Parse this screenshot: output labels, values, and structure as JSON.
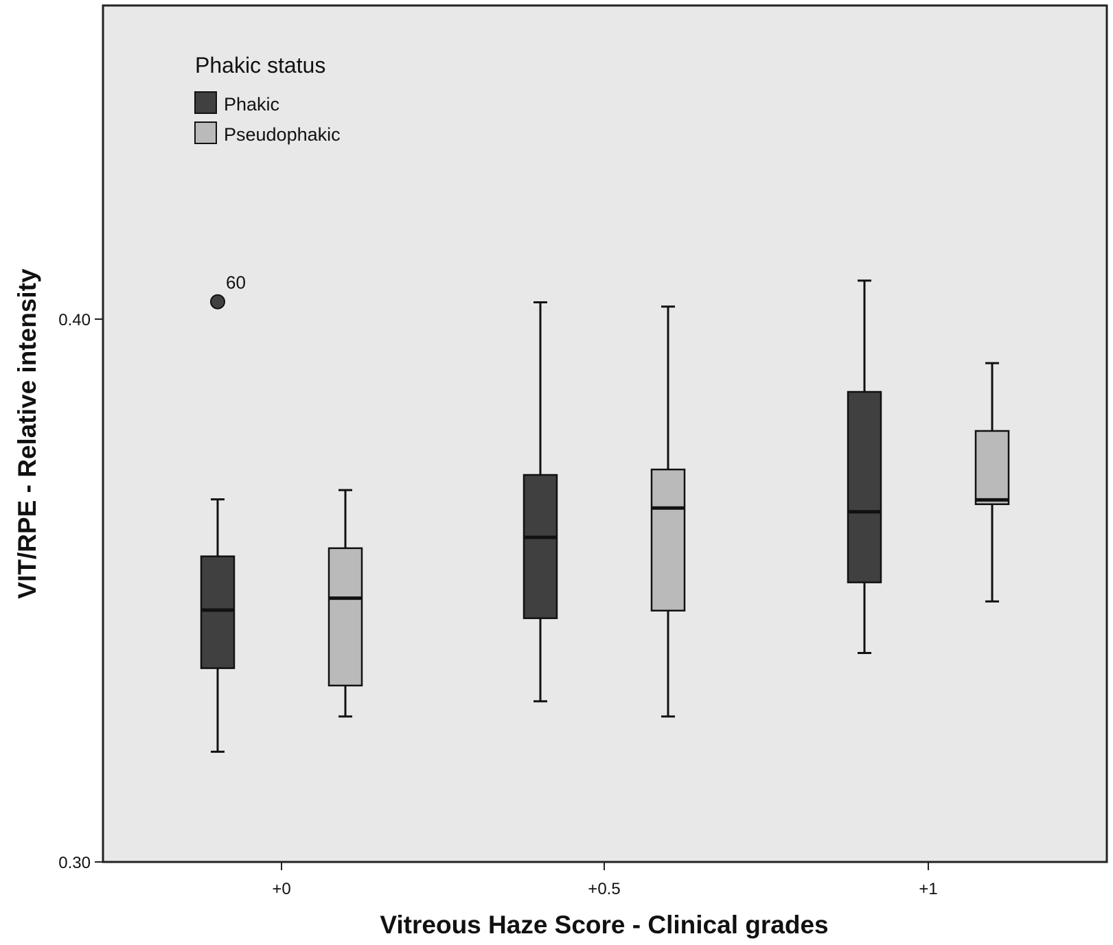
{
  "chart_data": {
    "type": "boxplot",
    "title": "",
    "xlabel": "Vitreous Haze Score - Clinical grades",
    "ylabel": "VIT/RPE - Relative intensity",
    "ylim": [
      0.3,
      0.46
    ],
    "y_ticks": [
      {
        "value": 0.3,
        "label": "0.30"
      },
      {
        "value": 0.4,
        "label": "0.40"
      }
    ],
    "categories": [
      "+0",
      "+0.5",
      "+1"
    ],
    "grid": false,
    "legend": {
      "title": "Phakic status",
      "position": "top-left"
    },
    "colors": {
      "plot_background": "#e8e8e8",
      "axis": "#222222"
    },
    "series": [
      {
        "name": "Phakic",
        "color": "#404040",
        "boxes": [
          {
            "category": "+0",
            "whisker_low": 0.3203,
            "q1": 0.3357,
            "median": 0.3464,
            "q3": 0.3563,
            "whisker_high": 0.3668
          },
          {
            "category": "+0.5",
            "whisker_low": 0.3296,
            "q1": 0.3449,
            "median": 0.3598,
            "q3": 0.3713,
            "whisker_high": 0.4031
          },
          {
            "category": "+1",
            "whisker_low": 0.3385,
            "q1": 0.3515,
            "median": 0.3645,
            "q3": 0.3866,
            "whisker_high": 0.4071
          }
        ],
        "outliers": [
          {
            "category": "+0",
            "value": 0.4032,
            "label": "60"
          }
        ]
      },
      {
        "name": "Pseudophakic",
        "color": "#bababa",
        "boxes": [
          {
            "category": "+0",
            "whisker_low": 0.3268,
            "q1": 0.3325,
            "median": 0.3486,
            "q3": 0.3578,
            "whisker_high": 0.3685
          },
          {
            "category": "+0.5",
            "whisker_low": 0.3268,
            "q1": 0.3463,
            "median": 0.3652,
            "q3": 0.3723,
            "whisker_high": 0.4023
          },
          {
            "category": "+1",
            "whisker_low": 0.348,
            "q1": 0.3659,
            "median": 0.3667,
            "q3": 0.3794,
            "whisker_high": 0.3919
          }
        ],
        "outliers": []
      }
    ]
  }
}
